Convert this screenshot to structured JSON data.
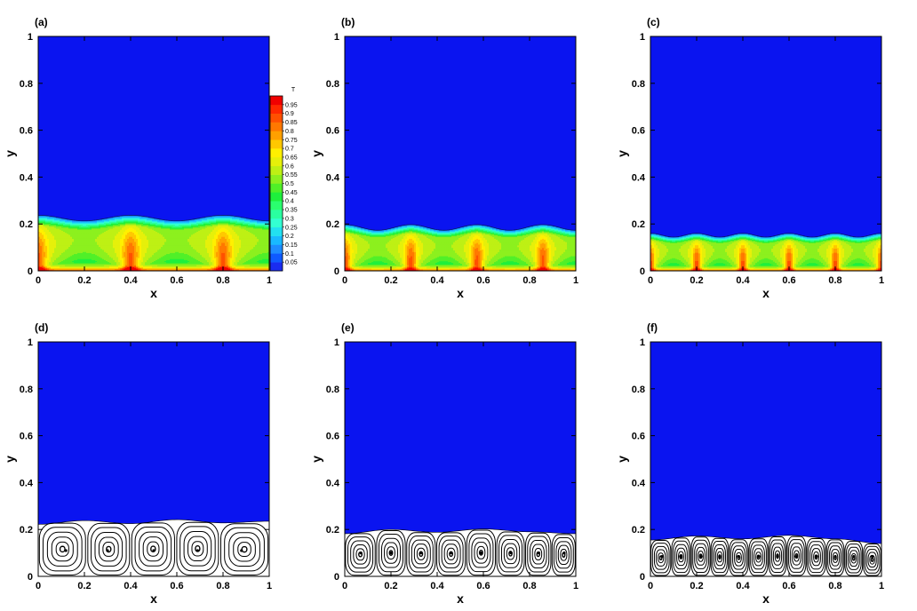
{
  "colors": {
    "solid": "#0a14f0",
    "streamline": "#000000",
    "liquid_background": "#ffffff",
    "colormap": [
      "#1a2cf0",
      "#0f5aff",
      "#1e8cff",
      "#19b9ff",
      "#22e0f0",
      "#33ffd2",
      "#2affa0",
      "#2aff6e",
      "#1ef03c",
      "#50f028",
      "#8cf01e",
      "#bef014",
      "#e6f00a",
      "#fff000",
      "#ffc800",
      "#ffa000",
      "#ff7800",
      "#ff5000",
      "#ff2800",
      "#f00000"
    ]
  },
  "chart_data": [
    {
      "id": "a",
      "label": "(a)",
      "type": "heatmap",
      "field": "temperature",
      "xlabel": "x",
      "ylabel": "y",
      "xlim": [
        0,
        1
      ],
      "ylim": [
        0,
        1
      ],
      "xticks": [
        "0",
        "0.2",
        "0.4",
        "0.6",
        "0.8",
        "1"
      ],
      "yticks": [
        "0",
        "0.2",
        "0.4",
        "0.6",
        "0.8",
        "1"
      ],
      "rolls": 2.5,
      "interface_mean": 0.225,
      "interface_amp": 0.012,
      "colorbar": {
        "title": "T",
        "levels": [
          "0.05",
          "0.1",
          "0.15",
          "0.2",
          "0.25",
          "0.3",
          "0.35",
          "0.4",
          "0.45",
          "0.5",
          "0.55",
          "0.6",
          "0.65",
          "0.7",
          "0.75",
          "0.8",
          "0.85",
          "0.9",
          "0.95"
        ]
      }
    },
    {
      "id": "b",
      "label": "(b)",
      "type": "heatmap",
      "field": "temperature",
      "xlabel": "x",
      "ylabel": "y",
      "xlim": [
        0,
        1
      ],
      "ylim": [
        0,
        1
      ],
      "xticks": [
        "0",
        "0.2",
        "0.4",
        "0.6",
        "0.8",
        "1"
      ],
      "yticks": [
        "0",
        "0.2",
        "0.4",
        "0.6",
        "0.8",
        "1"
      ],
      "rolls": 3.5,
      "interface_mean": 0.185,
      "interface_amp": 0.012
    },
    {
      "id": "c",
      "label": "(c)",
      "type": "heatmap",
      "field": "temperature",
      "xlabel": "x",
      "ylabel": "y",
      "xlim": [
        0,
        1
      ],
      "ylim": [
        0,
        1
      ],
      "xticks": [
        "0",
        "0.2",
        "0.4",
        "0.6",
        "0.8",
        "1"
      ],
      "yticks": [
        "0",
        "0.2",
        "0.4",
        "0.6",
        "0.8",
        "1"
      ],
      "rolls": 5,
      "interface_mean": 0.152,
      "interface_amp": 0.008
    },
    {
      "id": "d",
      "label": "(d)",
      "type": "streamlines",
      "xlabel": "x",
      "ylabel": "y",
      "xlim": [
        0,
        1
      ],
      "ylim": [
        0,
        1
      ],
      "xticks": [
        "0",
        "0.2",
        "0.4",
        "0.6",
        "0.8",
        "1"
      ],
      "yticks": [
        "0",
        "0.2",
        "0.4",
        "0.6",
        "0.8",
        "1"
      ],
      "roll_centers": [
        0.12,
        0.3,
        0.5,
        0.69,
        0.88
      ],
      "roll_center_y": 0.11,
      "interface": [
        [
          0,
          0.222
        ],
        [
          0.2,
          0.238
        ],
        [
          0.4,
          0.225
        ],
        [
          0.6,
          0.242
        ],
        [
          0.8,
          0.228
        ],
        [
          1,
          0.235
        ]
      ]
    },
    {
      "id": "e",
      "label": "(e)",
      "type": "streamlines",
      "xlabel": "x",
      "ylabel": "y",
      "xlim": [
        0,
        1
      ],
      "ylim": [
        0,
        1
      ],
      "xticks": [
        "0",
        "0.2",
        "0.4",
        "0.6",
        "0.8",
        "1"
      ],
      "yticks": [
        "0",
        "0.2",
        "0.4",
        "0.6",
        "0.8",
        "1"
      ],
      "roll_centers": [
        0.07,
        0.2,
        0.33,
        0.46,
        0.59,
        0.72,
        0.84,
        0.95
      ],
      "roll_center_y": 0.1,
      "interface": [
        [
          0,
          0.182
        ],
        [
          0.2,
          0.2
        ],
        [
          0.4,
          0.188
        ],
        [
          0.6,
          0.202
        ],
        [
          0.8,
          0.19
        ],
        [
          1,
          0.182
        ]
      ]
    },
    {
      "id": "f",
      "label": "(f)",
      "type": "streamlines",
      "xlabel": "x",
      "ylabel": "y",
      "xlim": [
        0,
        1
      ],
      "ylim": [
        0,
        1
      ],
      "xticks": [
        "0",
        "0.2",
        "0.4",
        "0.6",
        "0.8",
        "1"
      ],
      "yticks": [
        "0",
        "0.2",
        "0.4",
        "0.6",
        "0.8",
        "1"
      ],
      "roll_centers": [
        0.05,
        0.13,
        0.22,
        0.3,
        0.38,
        0.47,
        0.55,
        0.63,
        0.72,
        0.8,
        0.88,
        0.96
      ],
      "roll_center_y": 0.085,
      "interface": [
        [
          0,
          0.155
        ],
        [
          0.2,
          0.172
        ],
        [
          0.4,
          0.16
        ],
        [
          0.6,
          0.175
        ],
        [
          0.8,
          0.16
        ],
        [
          1,
          0.14
        ]
      ]
    }
  ]
}
